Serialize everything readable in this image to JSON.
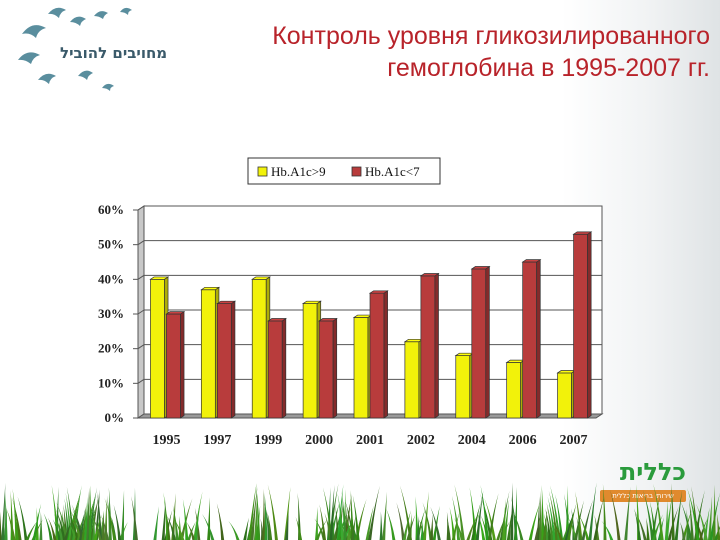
{
  "header": {
    "title_line1": "Контроль уровня гликозилированного",
    "title_line2": "гемоглобина в 1995-2007 гг."
  },
  "logo_left": {
    "text": "מחויבים להוביל",
    "icon": "birds-icon"
  },
  "logo_right": {
    "name": "כללית",
    "tagline": "שירותי בריאות כללית"
  },
  "colors": {
    "title": "#b8232a",
    "series1": "#f2f20a",
    "series2": "#b83c3c",
    "grass": "#3f8f2a"
  },
  "chart_data": {
    "type": "bar",
    "categories": [
      "1995",
      "1997",
      "1999",
      "2000",
      "2001",
      "2002",
      "2004",
      "2006",
      "2007"
    ],
    "series": [
      {
        "name": "Hb.A1c>9",
        "color": "#f2f20a",
        "values": [
          40,
          37,
          40,
          33,
          29,
          22,
          18,
          16,
          13
        ]
      },
      {
        "name": "Hb.A1c<7",
        "color": "#b83c3c",
        "values": [
          30,
          33,
          28,
          28,
          36,
          41,
          43,
          45,
          53
        ]
      }
    ],
    "yticks": [
      "0%",
      "10%",
      "20%",
      "30%",
      "40%",
      "50%",
      "60%"
    ],
    "ylim": [
      0,
      60
    ],
    "grid": true,
    "legend_position": "top-center",
    "title": "",
    "xlabel": "",
    "ylabel": ""
  }
}
